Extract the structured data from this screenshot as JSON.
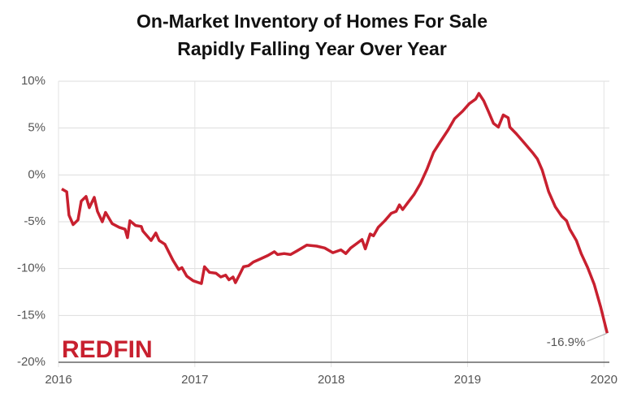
{
  "chart_data": {
    "type": "line",
    "title": [
      "On-Market Inventory of Homes For Sale",
      "Rapidly Falling Year Over Year"
    ],
    "logo": "REDFIN",
    "x": [
      2016.024,
      2016.06,
      2016.077,
      2016.107,
      2016.143,
      2016.167,
      2016.202,
      2016.226,
      2016.262,
      2016.286,
      2016.321,
      2016.345,
      2016.393,
      2016.446,
      2016.488,
      2016.506,
      2016.524,
      2016.565,
      2016.607,
      2016.619,
      2016.643,
      2016.679,
      2016.714,
      2016.738,
      2016.78,
      2016.839,
      2016.881,
      2016.905,
      2016.94,
      2016.988,
      2017.048,
      2017.071,
      2017.107,
      2017.155,
      2017.19,
      2017.226,
      2017.25,
      2017.28,
      2017.298,
      2017.333,
      2017.357,
      2017.393,
      2017.429,
      2017.476,
      2017.536,
      2017.583,
      2017.607,
      2017.655,
      2017.702,
      2017.75,
      2017.821,
      2017.893,
      2017.952,
      2018.012,
      2018.071,
      2018.107,
      2018.143,
      2018.19,
      2018.226,
      2018.25,
      2018.286,
      2018.31,
      2018.345,
      2018.393,
      2018.44,
      2018.476,
      2018.5,
      2018.524,
      2018.56,
      2018.607,
      2018.655,
      2018.702,
      2018.75,
      2018.798,
      2018.857,
      2018.905,
      2018.964,
      2019.012,
      2019.06,
      2019.083,
      2019.119,
      2019.155,
      2019.19,
      2019.226,
      2019.262,
      2019.298,
      2019.31,
      2019.357,
      2019.417,
      2019.476,
      2019.512,
      2019.548,
      2019.595,
      2019.643,
      2019.69,
      2019.726,
      2019.75,
      2019.798,
      2019.833,
      2019.881,
      2019.929,
      2019.976,
      2020.024
    ],
    "series": [
      {
        "color": "#c8202f",
        "values": [
          -1.5,
          -1.8,
          -4.3,
          -5.3,
          -4.8,
          -2.8,
          -2.3,
          -3.5,
          -2.4,
          -3.9,
          -5.0,
          -4.0,
          -5.2,
          -5.6,
          -5.8,
          -6.7,
          -4.9,
          -5.4,
          -5.5,
          -6.0,
          -6.4,
          -7.0,
          -6.2,
          -7.0,
          -7.4,
          -9.1,
          -10.1,
          -9.9,
          -10.8,
          -11.3,
          -11.6,
          -9.8,
          -10.4,
          -10.5,
          -10.9,
          -10.7,
          -11.2,
          -10.9,
          -11.5,
          -10.5,
          -9.8,
          -9.7,
          -9.3,
          -9.0,
          -8.6,
          -8.2,
          -8.5,
          -8.4,
          -8.5,
          -8.1,
          -7.5,
          -7.6,
          -7.8,
          -8.3,
          -8.0,
          -8.4,
          -7.8,
          -7.3,
          -6.9,
          -7.9,
          -6.3,
          -6.5,
          -5.6,
          -4.9,
          -4.1,
          -3.9,
          -3.2,
          -3.7,
          -3.0,
          -2.1,
          -0.9,
          0.6,
          2.4,
          3.5,
          4.8,
          6.0,
          6.8,
          7.6,
          8.1,
          8.7,
          7.9,
          6.7,
          5.5,
          5.1,
          6.4,
          6.1,
          5.1,
          4.4,
          3.4,
          2.4,
          1.7,
          0.5,
          -1.8,
          -3.4,
          -4.4,
          -4.9,
          -5.8,
          -7.0,
          -8.4,
          -9.9,
          -11.7,
          -14.1,
          -16.9
        ]
      }
    ],
    "annotation": {
      "label": "-16.9%",
      "value": -16.9
    },
    "xlim": [
      2016,
      2020.04
    ],
    "xticks": [
      2016,
      2017,
      2018,
      2019,
      2020
    ],
    "ylim": [
      -20,
      10
    ],
    "yticks": [
      {
        "value": -20,
        "label": "-20%"
      },
      {
        "value": -15,
        "label": "-15%"
      },
      {
        "value": -10,
        "label": "-10%"
      },
      {
        "value": -5,
        "label": "-5%"
      },
      {
        "value": 0,
        "label": "0%"
      },
      {
        "value": 5,
        "label": "5%"
      },
      {
        "value": 10,
        "label": "10%"
      }
    ],
    "grid": true
  }
}
